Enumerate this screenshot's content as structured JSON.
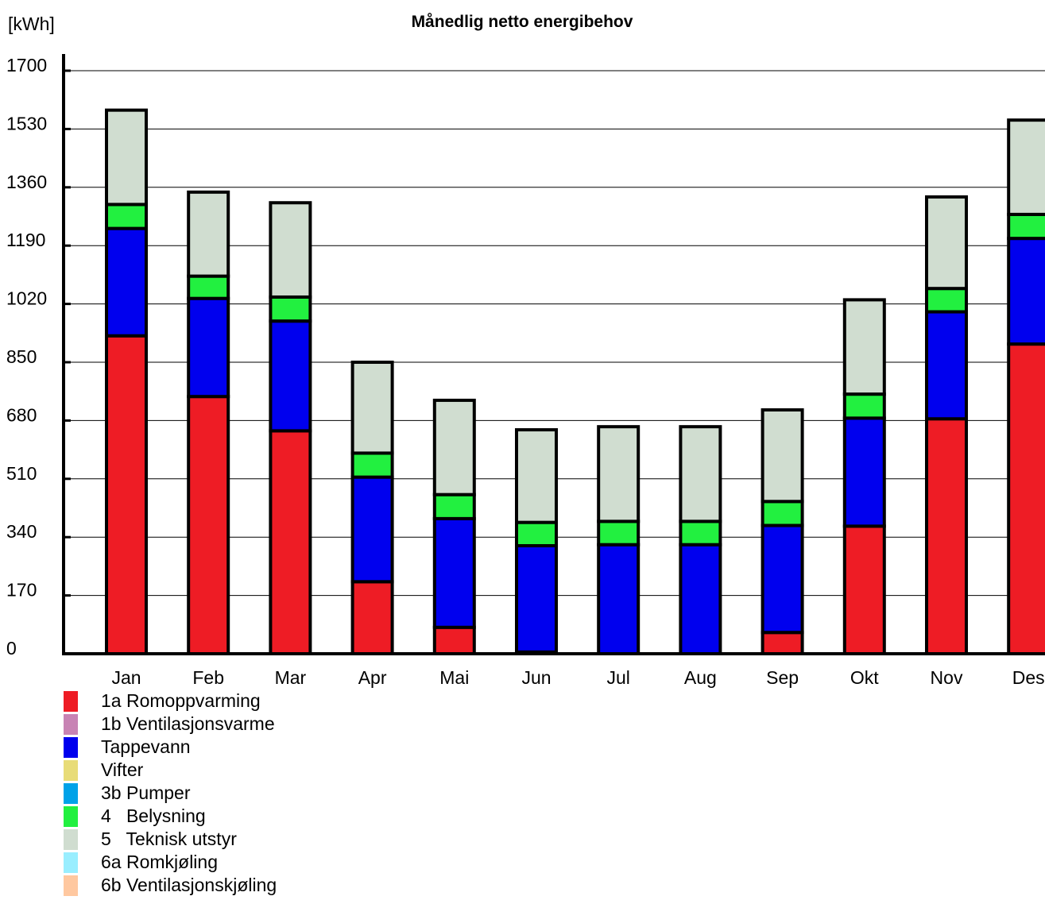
{
  "chart_data": {
    "type": "bar",
    "stacked": true,
    "title": "Månedlig netto energibehov",
    "ylabel": "[kWh]",
    "xlabel": "",
    "ylim": [
      0,
      1700
    ],
    "yticks": [
      0,
      170,
      340,
      510,
      680,
      850,
      1020,
      1190,
      1360,
      1530,
      1700
    ],
    "grid": true,
    "legend_position": "bottom-left",
    "categories": [
      "Jan",
      "Feb",
      "Mar",
      "Apr",
      "Mai",
      "Jun",
      "Jul",
      "Aug",
      "Sep",
      "Okt",
      "Nov",
      "Des"
    ],
    "series": [
      {
        "name": "1a Romoppvarming",
        "color": "#ee1c25",
        "values": [
          927,
          750,
          650,
          210,
          77,
          5,
          0,
          0,
          62,
          372,
          685,
          903
        ]
      },
      {
        "name": "1b Ventilasjonsvarme",
        "color": "#c883b4",
        "values": [
          0,
          0,
          0,
          0,
          0,
          0,
          0,
          0,
          0,
          0,
          0,
          0
        ]
      },
      {
        "name": "Tappevann",
        "color": "#0000ee",
        "values": [
          313,
          286,
          320,
          305,
          317,
          310,
          318,
          318,
          312,
          315,
          312,
          308
        ]
      },
      {
        "name": "Vifter",
        "color": "#e8dc78",
        "values": [
          0,
          0,
          0,
          0,
          0,
          0,
          0,
          0,
          0,
          0,
          0,
          0
        ]
      },
      {
        "name": "3b Pumper",
        "color": "#00a2e8",
        "values": [
          0,
          0,
          0,
          0,
          0,
          0,
          0,
          0,
          0,
          0,
          0,
          0
        ]
      },
      {
        "name": "4   Belysning",
        "color": "#22f040",
        "values": [
          70,
          65,
          70,
          70,
          70,
          68,
          68,
          68,
          70,
          70,
          68,
          70
        ]
      },
      {
        "name": "5   Teknisk utstyr",
        "color": "#d0ddd0",
        "values": [
          275,
          245,
          275,
          265,
          275,
          270,
          276,
          276,
          267,
          275,
          267,
          275
        ]
      },
      {
        "name": "6a Romkjøling",
        "color": "#99eeff",
        "values": [
          0,
          0,
          0,
          0,
          0,
          0,
          0,
          0,
          0,
          0,
          0,
          0
        ]
      },
      {
        "name": "6b Ventilasjonskjøling",
        "color": "#ffc8a0",
        "values": [
          0,
          0,
          0,
          0,
          0,
          0,
          0,
          0,
          0,
          0,
          0,
          0
        ]
      }
    ]
  }
}
